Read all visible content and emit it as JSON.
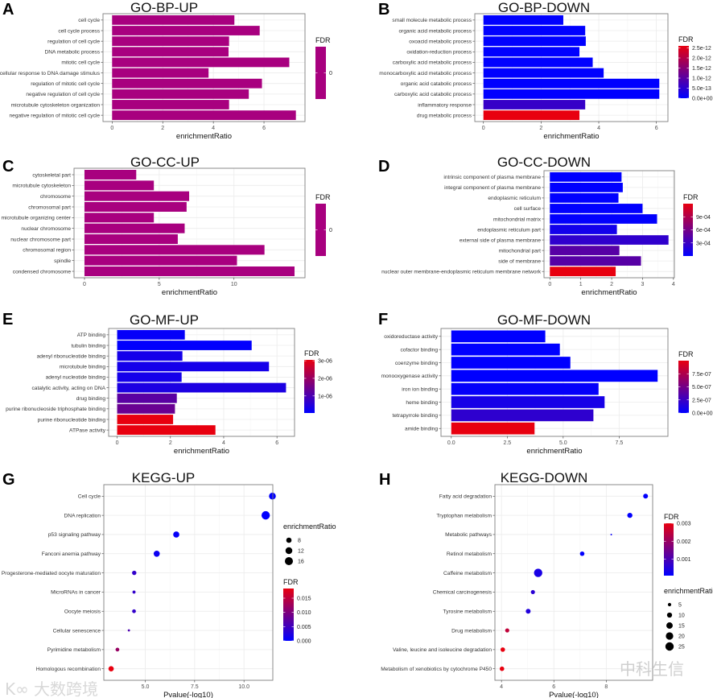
{
  "watermarks": {
    "left_logo": "K∞",
    "left": "大数跨境",
    "right": "中科生信"
  },
  "colors": {
    "single": "#a8007f",
    "low": "#0000ff",
    "high": "#e8000f",
    "border": "#7f7f7f",
    "grid": "#ebebeb"
  },
  "chart_data": [
    {
      "panel": "A",
      "title": "GO-BP-UP",
      "type": "bar",
      "xlabel": "enrichmentRatio",
      "categories": [
        "cell cycle",
        "cell cycle process",
        "regulation of cell cycle",
        "DNA metabolic process",
        "mitotic cell cycle",
        "cellular response to DNA damage stimulus",
        "regulation of mitotic cell cycle",
        "negative regulation of cell cycle",
        "microtubule cytoskeleton organization",
        "negative regulation of mitotic cell cycle"
      ],
      "values": [
        4.83,
        5.83,
        4.62,
        4.6,
        7.0,
        3.81,
        5.92,
        5.4,
        4.62,
        7.26
      ],
      "fdr": [
        0,
        0,
        0,
        0,
        0,
        0,
        0,
        0,
        0,
        0
      ],
      "xlim": [
        -0.36,
        7.62
      ],
      "xticks": [
        0,
        2,
        4,
        6
      ],
      "xtick_labels": [
        "0",
        "2",
        "4",
        "6"
      ],
      "legend": {
        "title": "FDR",
        "single_color": true,
        "domain": [
          0,
          0
        ],
        "ticks": [
          0
        ],
        "tick_labels": [
          "0"
        ]
      }
    },
    {
      "panel": "B",
      "title": "GO-BP-DOWN",
      "type": "bar",
      "xlabel": "enrichmentRatio",
      "categories": [
        "small molecule metabolic process",
        "organic acid metabolic process",
        "oxoacid metabolic process",
        "oxidation-reduction process",
        "carboxylic acid metabolic process",
        "monocarboxylic acid metabolic process",
        "organic acid catabolic process",
        "carboxylic acid catabolic process",
        "inflammatory response",
        "drug metabolic process"
      ],
      "values": [
        2.77,
        3.53,
        3.55,
        3.33,
        3.79,
        4.17,
        6.1,
        6.1,
        3.53,
        3.33
      ],
      "fdr": [
        1e-15,
        2e-15,
        2e-15,
        3e-15,
        4e-15,
        5e-15,
        1e-16,
        1e-16,
        6e-13,
        2.6e-12
      ],
      "xlim": [
        -0.3,
        6.4
      ],
      "xticks": [
        0,
        2,
        4,
        6
      ],
      "xtick_labels": [
        "0",
        "2",
        "4",
        "6"
      ],
      "legend": {
        "title": "FDR",
        "domain": [
          0,
          2.6e-12
        ],
        "ticks": [
          0,
          5e-13,
          1e-12,
          1.5e-12,
          2e-12,
          2.5e-12
        ],
        "tick_labels": [
          "0.0e+00",
          "5.0e-13",
          "1.0e-12",
          "1.5e-12",
          "2.0e-12",
          "2.5e-12"
        ]
      }
    },
    {
      "panel": "C",
      "title": "GO-CC-UP",
      "type": "bar",
      "xlabel": "enrichmentRatio",
      "categories": [
        "cytoskeletal part",
        "microtubule cytoskeleton",
        "chromosome",
        "chromosomal part",
        "microtubule organizing center",
        "nuclear chromosome",
        "nuclear chromosome part",
        "chromosomal region",
        "spindle",
        "condensed chromosome"
      ],
      "values": [
        3.46,
        4.64,
        7.0,
        6.83,
        4.64,
        6.7,
        6.24,
        12.04,
        10.2,
        14.05
      ],
      "fdr": [
        0,
        0,
        0,
        0,
        0,
        0,
        0,
        0,
        0,
        0
      ],
      "xlim": [
        -0.7,
        14.75
      ],
      "xticks": [
        0,
        5,
        10
      ],
      "xtick_labels": [
        "0",
        "5",
        "10"
      ],
      "legend": {
        "title": "FDR",
        "single_color": true,
        "domain": [
          0,
          0
        ],
        "ticks": [
          0
        ],
        "tick_labels": [
          "0"
        ]
      }
    },
    {
      "panel": "D",
      "title": "GO-CC-DOWN",
      "type": "bar",
      "xlabel": "enrichmentRatio",
      "categories": [
        "intrinsic component of plasma membrane",
        "integral component of plasma membrane",
        "endoplasmic reticulum",
        "cell surface",
        "mitochondrial matrix",
        "endoplasmic reticulum part",
        "external side of plasma membrane",
        "mitochondrial part",
        "side of membrane",
        "nuclear outer membrane-endoplasmic reticulum membrane network"
      ],
      "values": [
        2.32,
        2.36,
        2.22,
        3.0,
        3.47,
        2.17,
        3.84,
        2.25,
        2.95,
        2.13
      ],
      "fdr": [
        1e-06,
        1e-06,
        2e-06,
        5e-06,
        8e-06,
        0.0001,
        0.00025,
        0.00045,
        0.00045,
        0.0012
      ],
      "xlim": [
        -0.19,
        4.03
      ],
      "xticks": [
        0,
        1,
        2,
        3,
        4
      ],
      "xtick_labels": [
        "0",
        "1",
        "2",
        "3",
        "4"
      ],
      "legend": {
        "title": "FDR",
        "domain": [
          0,
          0.0012
        ],
        "ticks": [
          0.0003,
          0.0006,
          0.0009
        ],
        "tick_labels": [
          "3e-04",
          "6e-04",
          "9e-04"
        ]
      }
    },
    {
      "panel": "E",
      "title": "GO-MF-UP",
      "type": "bar",
      "xlabel": "enrichmentRatio",
      "categories": [
        "ATP binding",
        "tubulin binding",
        "adenyl ribonucleotide binding",
        "microtubule binding",
        "adenyl nucleotide binding",
        "catalytic activity, acting on DNA",
        "drug binding",
        "purine ribonucleoside triphosphate binding",
        "purine ribonucleotide binding",
        "ATPase activity"
      ],
      "values": [
        2.54,
        5.05,
        2.45,
        5.7,
        2.42,
        6.34,
        2.24,
        2.17,
        2.1,
        3.69
      ],
      "fdr": [
        1e-07,
        5e-08,
        3e-07,
        3e-07,
        3e-07,
        4e-07,
        1.2e-06,
        1.4e-06,
        3.05e-06,
        3.05e-06
      ],
      "xlim": [
        -0.32,
        6.66
      ],
      "xticks": [
        0,
        2,
        4,
        6
      ],
      "xtick_labels": [
        "0",
        "2",
        "4",
        "6"
      ],
      "legend": {
        "title": "FDR",
        "domain": [
          3e-08,
          3.05e-06
        ],
        "ticks": [
          1e-06,
          2e-06,
          3e-06
        ],
        "tick_labels": [
          "1e-06",
          "2e-06",
          "3e-06"
        ]
      }
    },
    {
      "panel": "F",
      "title": "GO-MF-DOWN",
      "type": "bar",
      "xlabel": "enrichmentRatio",
      "categories": [
        "oxidoreductase activity",
        "cofactor binding",
        "coenzyme binding",
        "monooxygenase activity",
        "iron ion binding",
        "heme binding",
        "tetrapyrrole binding",
        "amide binding"
      ],
      "values": [
        4.2,
        4.85,
        5.32,
        9.22,
        6.58,
        6.85,
        6.35,
        3.72
      ],
      "fdr": [
        1e-09,
        2e-09,
        3e-09,
        1e-09,
        2e-08,
        1e-07,
        2e-07,
        1e-06
      ],
      "xlim": [
        -0.46,
        9.68
      ],
      "xticks": [
        0,
        2.5,
        5,
        7.5
      ],
      "xtick_labels": [
        "0.0",
        "2.5",
        "5.0",
        "7.5"
      ],
      "legend": {
        "title": "FDR",
        "domain": [
          0,
          1e-06
        ],
        "ticks": [
          0,
          2.5e-07,
          5e-07,
          7.5e-07
        ],
        "tick_labels": [
          "0.0e+00",
          "2.5e-07",
          "5.0e-07",
          "7.5e-07"
        ]
      }
    },
    {
      "panel": "G",
      "title": "KEGG-UP",
      "type": "scatter",
      "xlabel": "Pvalue(-log10)",
      "categories": [
        "Cell cycle",
        "DNA replication",
        "p53 signaling pathway",
        "Fanconi anemia pathway",
        "Progesterone-mediated oocyte maturation",
        "MicroRNAs in cancer",
        "Oocyte meiosis",
        "Cellular senescence",
        "Pyrimidine metabolism",
        "Homologous recombination"
      ],
      "x": [
        11.44,
        11.1,
        6.57,
        5.58,
        4.44,
        4.43,
        4.43,
        4.17,
        3.59,
        3.27
      ],
      "enrichmentRatio": [
        12,
        17,
        10,
        10,
        6,
        4,
        5,
        3,
        5,
        8
      ],
      "fdr": [
        0.0001,
        0.0001,
        0.0005,
        0.001,
        0.004,
        0.004,
        0.004,
        0.006,
        0.012,
        0.0184
      ],
      "xlim": [
        2.9,
        11.46
      ],
      "xticks": [
        5,
        7.5,
        10
      ],
      "xtick_labels": [
        "5.0",
        "7.5",
        "10.0"
      ],
      "size_legend": {
        "title": "enrichmentRatio",
        "values": [
          8,
          12,
          16
        ],
        "labels": [
          "8",
          "12",
          "16"
        ],
        "domain": [
          3,
          17
        ]
      },
      "legend": {
        "title": "FDR",
        "domain": [
          0,
          0.0184
        ],
        "ticks": [
          0,
          0.005,
          0.01,
          0.015
        ],
        "tick_labels": [
          "0.000",
          "0.005",
          "0.010",
          "0.015"
        ]
      }
    },
    {
      "panel": "H",
      "title": "KEGG-DOWN",
      "type": "scatter",
      "xlabel": "Pvalue(-log10)",
      "categories": [
        "Fatty acid degradation",
        "Tryptophan metabolism",
        "Metabolic pathways",
        "Retinol metabolism",
        "Caffeine metabolism",
        "Chemical carcinogenesis",
        "Tyrosine metabolism",
        "Drug metabolism",
        "Valine, leucine and isoleucine degradation",
        "Metabolism of xenobiotics by cytochrome P450"
      ],
      "x": [
        9.5,
        8.9,
        8.19,
        7.08,
        5.4,
        5.2,
        5.02,
        4.22,
        4.05,
        4.02
      ],
      "enrichmentRatio": [
        9,
        10,
        2,
        8,
        25,
        7,
        9,
        7,
        8,
        8
      ],
      "fdr": [
        0.0001,
        0.0001,
        0.0002,
        0.0001,
        0.0004,
        0.0006,
        0.0005,
        0.0025,
        0.003,
        0.003
      ],
      "xlim": [
        3.75,
        9.77
      ],
      "xticks": [
        4,
        6,
        8
      ],
      "xtick_labels": [
        "4",
        "6",
        "8"
      ],
      "size_legend": {
        "title": "enrichmentRatio",
        "values": [
          5,
          10,
          15,
          20,
          25
        ],
        "labels": [
          "5",
          "10",
          "15",
          "20",
          "25"
        ],
        "domain": [
          2,
          25
        ]
      },
      "legend": {
        "title": "FDR",
        "domain": [
          8e-05,
          0.003
        ],
        "ticks": [
          0.001,
          0.002,
          0.003
        ],
        "tick_labels": [
          "0.001",
          "0.002",
          "0.003"
        ]
      }
    }
  ]
}
